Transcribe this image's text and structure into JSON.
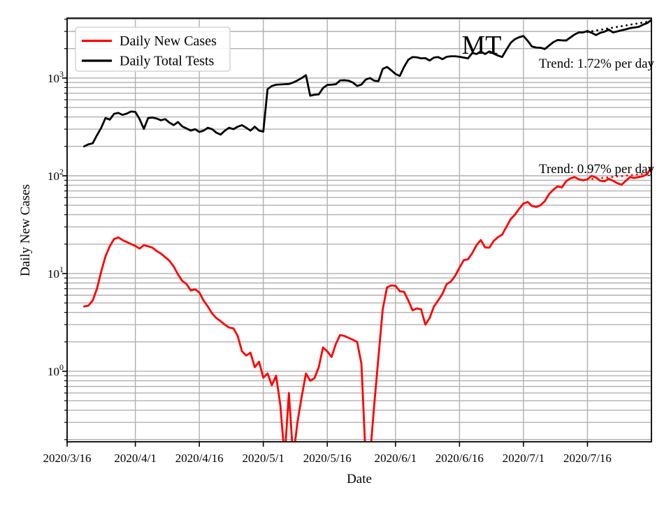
{
  "chart_data": {
    "type": "line",
    "title": "MT",
    "xlabel": "Date",
    "ylabel": "Daily New Cases",
    "yscale": "log",
    "ylim": [
      0.19,
      4100
    ],
    "x_axis_start": "2020/3/16",
    "x_axis_span_days": 137,
    "x_interval": "daily",
    "grid": {
      "color": "#b0b0b0",
      "minor": true
    },
    "x_ticks": [
      {
        "offset": 0,
        "label": "2020/3/16"
      },
      {
        "offset": 16,
        "label": "2020/4/1"
      },
      {
        "offset": 31,
        "label": "2020/4/16"
      },
      {
        "offset": 46,
        "label": "2020/5/1"
      },
      {
        "offset": 61,
        "label": "2020/5/16"
      },
      {
        "offset": 77,
        "label": "2020/6/1"
      },
      {
        "offset": 92,
        "label": "2020/6/16"
      },
      {
        "offset": 107,
        "label": "2020/7/1"
      },
      {
        "offset": 122,
        "label": "2020/7/16"
      }
    ],
    "y_ticks": [
      {
        "label": "10^0",
        "exp": 0
      },
      {
        "label": "10^1",
        "exp": 1
      },
      {
        "label": "10^2",
        "exp": 2
      },
      {
        "label": "10^3",
        "exp": 3
      }
    ],
    "legend": {
      "entries": [
        {
          "label": "Daily New Cases",
          "color": "#ff0000"
        },
        {
          "label": "Daily Total Tests",
          "color": "#000000"
        }
      ]
    },
    "series": [
      {
        "name": "Daily New Cases",
        "color": "#ff0000",
        "start_date": "2020/3/20",
        "start_offset": 4,
        "values": [
          4.6,
          4.7,
          5.3,
          7.0,
          10.5,
          15,
          19,
          22.5,
          23.4,
          22,
          21,
          20,
          19.2,
          18,
          19.5,
          19,
          18.4,
          17,
          16,
          14.7,
          13.5,
          11.8,
          9.8,
          8.4,
          7.8,
          6.7,
          6.9,
          6.4,
          5.3,
          4.6,
          3.9,
          3.5,
          3.25,
          3.0,
          2.8,
          2.75,
          2.3,
          1.6,
          1.45,
          1.55,
          1.1,
          1.25,
          0.86,
          0.95,
          0.72,
          0.9,
          0.45,
          0.13,
          0.6,
          0.13,
          0.3,
          0.55,
          0.95,
          0.8,
          0.85,
          1.1,
          1.75,
          1.6,
          1.4,
          1.9,
          2.35,
          2.3,
          2.2,
          2.1,
          2.0,
          1.2,
          0.13,
          0.13,
          0.45,
          1.4,
          4.3,
          7.2,
          7.55,
          7.5,
          6.6,
          6.5,
          5.3,
          4.2,
          4.4,
          4.3,
          3.0,
          3.5,
          4.6,
          5.3,
          6.2,
          7.8,
          8.3,
          9.5,
          11.5,
          13.7,
          14.0,
          16.2,
          19.5,
          22,
          18.5,
          18.4,
          21.5,
          23.5,
          25,
          30,
          36,
          40,
          46,
          52,
          54,
          49,
          48,
          50,
          55,
          65,
          72,
          78,
          76,
          88,
          94,
          97,
          92,
          90,
          92,
          100,
          96,
          89,
          88,
          93,
          89,
          84,
          81,
          89,
          97,
          95,
          97,
          99,
          104,
          122
        ]
      },
      {
        "name": "Daily Total Tests",
        "color": "#000000",
        "start_date": "2020/3/20",
        "start_offset": 4,
        "values": [
          200,
          210,
          215,
          260,
          310,
          390,
          375,
          430,
          440,
          420,
          433,
          455,
          450,
          380,
          302,
          390,
          395,
          385,
          370,
          380,
          350,
          330,
          355,
          320,
          305,
          290,
          300,
          281,
          290,
          310,
          300,
          276,
          264,
          290,
          310,
          300,
          318,
          330,
          310,
          290,
          318,
          290,
          283,
          770,
          830,
          855,
          860,
          865,
          870,
          900,
          946,
          1000,
          1070,
          660,
          675,
          680,
          790,
          850,
          855,
          865,
          945,
          950,
          940,
          900,
          830,
          857,
          963,
          1000,
          940,
          930,
          1240,
          1300,
          1200,
          1100,
          1050,
          1300,
          1540,
          1640,
          1630,
          1590,
          1600,
          1510,
          1620,
          1640,
          1560,
          1650,
          1670,
          1670,
          1650,
          1620,
          1590,
          1810,
          1760,
          1870,
          1760,
          1870,
          1780,
          1700,
          1640,
          1950,
          2290,
          2500,
          2620,
          2690,
          2400,
          2100,
          2050,
          2040,
          1980,
          2150,
          2330,
          2450,
          2430,
          2420,
          2600,
          2790,
          2930,
          2930,
          3030,
          2900,
          2750,
          2900,
          2980,
          3130,
          2930,
          3000,
          3080,
          3150,
          3240,
          3290,
          3340,
          3510,
          3650,
          3930
        ]
      }
    ],
    "trends": [
      {
        "series": "Daily Total Tests",
        "label": "Trend: 1.72% per day",
        "rate_pct_per_day": 1.72,
        "start_offset": 122,
        "start_value": 2960,
        "days": 15,
        "color": "#000000"
      },
      {
        "series": "Daily New Cases",
        "label": "Trend: 0.97% per day",
        "rate_pct_per_day": 0.97,
        "start_offset": 122,
        "start_value": 92,
        "days": 15,
        "color": "#ff0000"
      }
    ]
  }
}
